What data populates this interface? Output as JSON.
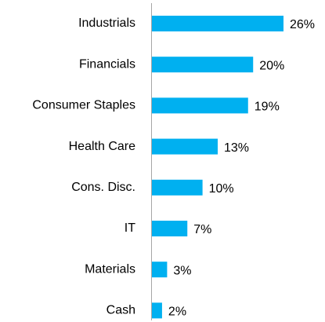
{
  "chart_data": {
    "type": "bar",
    "orientation": "horizontal",
    "categories": [
      "Industrials",
      "Financials",
      "Consumer Staples",
      "Health Care",
      "Cons. Disc.",
      "IT",
      "Materials",
      "Cash"
    ],
    "values": [
      26,
      20,
      19,
      13,
      10,
      7,
      3,
      2
    ],
    "value_labels": [
      "26%",
      "20%",
      "19%",
      "13%",
      "10%",
      "7%",
      "3%",
      "2%"
    ],
    "color": "#00b0f0"
  }
}
